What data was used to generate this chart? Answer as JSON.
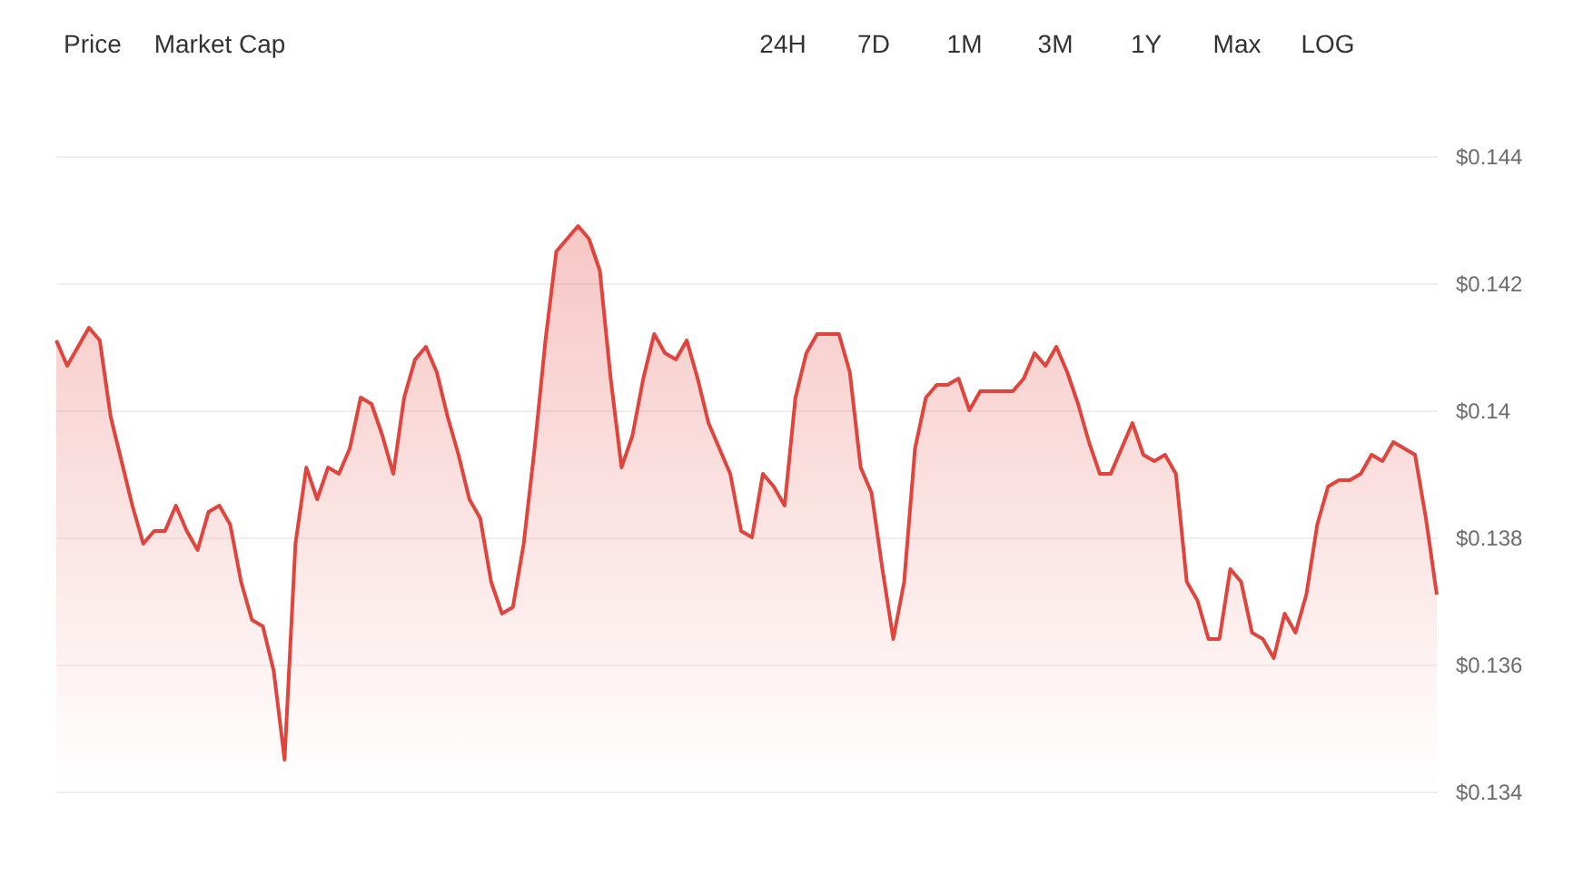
{
  "chart_data": {
    "type": "area",
    "annotations": [
      "Price",
      "Market Cap",
      "24H",
      "7D",
      "1M",
      "3M",
      "1Y",
      "Max",
      "LOG"
    ],
    "categories": [
      null,
      null,
      null,
      null,
      null,
      null,
      null,
      null,
      null,
      null,
      null,
      null,
      null,
      null,
      null,
      null,
      null,
      null,
      null,
      null,
      null,
      null,
      null,
      null,
      null,
      null,
      null,
      null,
      null,
      null,
      null,
      null,
      null,
      null,
      null,
      null,
      null,
      null,
      null,
      null,
      null,
      null,
      null,
      null,
      null,
      null,
      null,
      null,
      null,
      null,
      null,
      null,
      null,
      null,
      null,
      null,
      null,
      null,
      null,
      null,
      null,
      null,
      null,
      null,
      null,
      null,
      null,
      null,
      null,
      null,
      null,
      null,
      null,
      null,
      null,
      null,
      null,
      null,
      null,
      null,
      null,
      null,
      null,
      null,
      null,
      null,
      null,
      null,
      null,
      null,
      null,
      null,
      null,
      null,
      null,
      null,
      null,
      null,
      null,
      null,
      null,
      null,
      null,
      null,
      null,
      null,
      null,
      null,
      null,
      null,
      null,
      null,
      null,
      null,
      null,
      null,
      null,
      null,
      null,
      null,
      null,
      null,
      null,
      null,
      null,
      null,
      null,
      null
    ],
    "series": [
      {
        "color": "#e0443c",
        "values": [
          0.1411,
          0.1407,
          0.141,
          0.1413,
          0.1411,
          0.1399,
          0.1392,
          0.1385,
          0.1379,
          0.1381,
          0.1381,
          0.1385,
          0.1381,
          0.1378,
          0.1384,
          0.1385,
          0.1382,
          0.1373,
          0.1367,
          0.1366,
          0.1359,
          0.1345,
          0.1379,
          0.1391,
          0.1386,
          0.1391,
          0.139,
          0.1394,
          0.1402,
          0.1401,
          0.1396,
          0.139,
          0.1402,
          0.1408,
          0.141,
          0.1406,
          0.1399,
          0.1393,
          0.1386,
          0.1383,
          0.1373,
          0.1368,
          0.1369,
          0.1379,
          0.1394,
          0.1411,
          0.1425,
          0.1427,
          0.1429,
          0.1427,
          0.1422,
          0.1405,
          0.1391,
          0.1396,
          0.1405,
          0.1412,
          0.1409,
          0.1408,
          0.1411,
          0.1405,
          0.1398,
          0.1394,
          0.139,
          0.1381,
          0.138,
          0.139,
          0.1388,
          0.1385,
          0.1402,
          0.1409,
          0.1412,
          0.1412,
          0.1412,
          0.1406,
          0.1391,
          0.1387,
          0.1375,
          0.1364,
          0.1373,
          0.1394,
          0.1402,
          0.1404,
          0.1404,
          0.1405,
          0.14,
          0.1403,
          0.1403,
          0.1403,
          0.1403,
          0.1405,
          0.1409,
          0.1407,
          0.141,
          0.1406,
          0.1401,
          0.1395,
          0.139,
          0.139,
          0.1394,
          0.1398,
          0.1393,
          0.1392,
          0.1393,
          0.139,
          0.1373,
          0.137,
          0.1364,
          0.1364,
          0.1375,
          0.1373,
          0.1365,
          0.1364,
          0.1361,
          0.1368,
          0.1365,
          0.1371,
          0.1382,
          0.1388,
          0.1389,
          0.1389,
          0.139,
          0.1393,
          0.1392,
          0.1395,
          0.1394,
          0.1393,
          0.1383,
          0.1371
        ]
      }
    ],
    "ylim": [
      0.134,
      0.144
    ],
    "yticks": [
      {
        "value": 0.134,
        "label": "$0.134"
      },
      {
        "value": 0.136,
        "label": "$0.136"
      },
      {
        "value": 0.138,
        "label": "$0.138"
      },
      {
        "value": 0.14,
        "label": "$0.14"
      },
      {
        "value": 0.142,
        "label": "$0.142"
      },
      {
        "value": 0.144,
        "label": "$0.144"
      }
    ],
    "grid": "y"
  }
}
